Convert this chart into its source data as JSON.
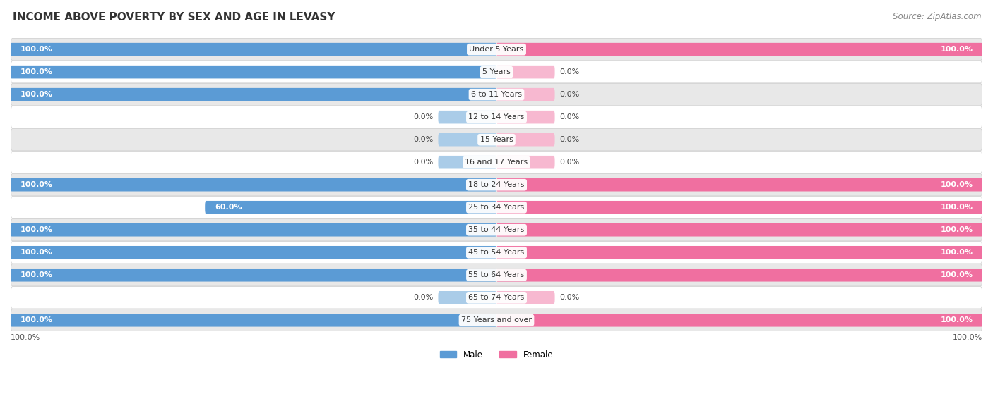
{
  "title": "INCOME ABOVE POVERTY BY SEX AND AGE IN LEVASY",
  "source": "Source: ZipAtlas.com",
  "categories": [
    "Under 5 Years",
    "5 Years",
    "6 to 11 Years",
    "12 to 14 Years",
    "15 Years",
    "16 and 17 Years",
    "18 to 24 Years",
    "25 to 34 Years",
    "35 to 44 Years",
    "45 to 54 Years",
    "55 to 64 Years",
    "65 to 74 Years",
    "75 Years and over"
  ],
  "male_values": [
    100.0,
    100.0,
    100.0,
    0.0,
    0.0,
    0.0,
    100.0,
    60.0,
    100.0,
    100.0,
    100.0,
    0.0,
    100.0
  ],
  "female_values": [
    100.0,
    0.0,
    0.0,
    0.0,
    0.0,
    0.0,
    100.0,
    100.0,
    100.0,
    100.0,
    100.0,
    0.0,
    100.0
  ],
  "male_color": "#5b9bd5",
  "male_color_light": "#aacce8",
  "female_color": "#f06fa0",
  "female_color_light": "#f7b8d0",
  "male_label": "Male",
  "female_label": "Female",
  "bg_row": "#e8e8e8",
  "bg_white": "#ffffff",
  "bar_height": 0.58,
  "stub_size": 12.0,
  "xlim": 100,
  "title_fontsize": 11,
  "label_fontsize": 8.5,
  "value_fontsize": 8,
  "source_fontsize": 8.5,
  "cat_fontsize": 8
}
